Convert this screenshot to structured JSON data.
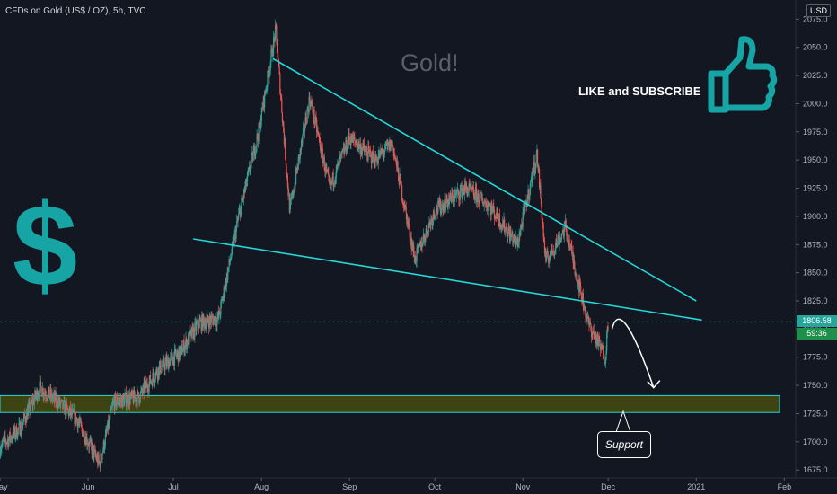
{
  "symbol_label": "CFDs on Gold (US$ / OZ), 5h, TVC",
  "currency": "USD",
  "watermark": "Gold!",
  "promo_text": "LIKE and SUBSCRIBE",
  "dollar_glyph": "$",
  "price_tag": {
    "last": "1806.58",
    "countdown": "59:36"
  },
  "support_label": "Support",
  "icons": [
    "thumbs-up-icon"
  ],
  "colors": {
    "background": "#131722",
    "up": "#26a69a",
    "down": "#ef5350",
    "trendline": "#26d6d6",
    "support_zone": "#3d4411",
    "accent": "#17a4a4",
    "last_price": "#26a69a"
  },
  "chart_data": {
    "type": "candlestick",
    "title": "",
    "xlabel": "",
    "ylabel": "",
    "yticks": [
      1675,
      1700,
      1725,
      1750,
      1775,
      1800,
      1825,
      1850,
      1875,
      1900,
      1925,
      1950,
      1975,
      2000,
      2025,
      2050,
      2075
    ],
    "ylim": [
      1668,
      2092
    ],
    "xticks": [
      "May",
      "Jun",
      "Jul",
      "Aug",
      "Sep",
      "Oct",
      "Nov",
      "Dec",
      "2021",
      "Feb"
    ],
    "xlim": [
      "2020-05-01",
      "2021-02-05"
    ],
    "price_path": [
      [
        "2020-05-01",
        1695
      ],
      [
        "2020-05-08",
        1712
      ],
      [
        "2020-05-15",
        1748
      ],
      [
        "2020-05-19",
        1740
      ],
      [
        "2020-05-28",
        1720
      ],
      [
        "2020-06-05",
        1680
      ],
      [
        "2020-06-10",
        1735
      ],
      [
        "2020-06-19",
        1740
      ],
      [
        "2020-06-26",
        1765
      ],
      [
        "2020-07-03",
        1778
      ],
      [
        "2020-07-10",
        1805
      ],
      [
        "2020-07-17",
        1810
      ],
      [
        "2020-07-24",
        1900
      ],
      [
        "2020-07-31",
        1975
      ],
      [
        "2020-08-06",
        2065
      ],
      [
        "2020-08-11",
        1905
      ],
      [
        "2020-08-18",
        2005
      ],
      [
        "2020-08-25",
        1925
      ],
      [
        "2020-09-01",
        1970
      ],
      [
        "2020-09-10",
        1950
      ],
      [
        "2020-09-16",
        1965
      ],
      [
        "2020-09-24",
        1862
      ],
      [
        "2020-10-01",
        1905
      ],
      [
        "2020-10-12",
        1925
      ],
      [
        "2020-10-20",
        1910
      ],
      [
        "2020-10-30",
        1875
      ],
      [
        "2020-11-06",
        1955
      ],
      [
        "2020-11-09",
        1860
      ],
      [
        "2020-11-16",
        1890
      ],
      [
        "2020-11-24",
        1805
      ],
      [
        "2020-11-30",
        1775
      ],
      [
        "2020-12-01",
        1806.58
      ]
    ],
    "trendlines": [
      {
        "name": "upper",
        "from": [
          "2020-08-05",
          2040
        ],
        "to": [
          "2021-01-01",
          1825
        ]
      },
      {
        "name": "lower",
        "from": [
          "2020-07-08",
          1880
        ],
        "to": [
          "2021-01-03",
          1808
        ]
      }
    ],
    "support_zone": {
      "from": 1726,
      "to": 1741
    },
    "projection": {
      "from": [
        "2020-12-03",
        1808
      ],
      "to": [
        "2020-12-17",
        1748
      ]
    },
    "last_price": 1806.58,
    "grid": false
  }
}
